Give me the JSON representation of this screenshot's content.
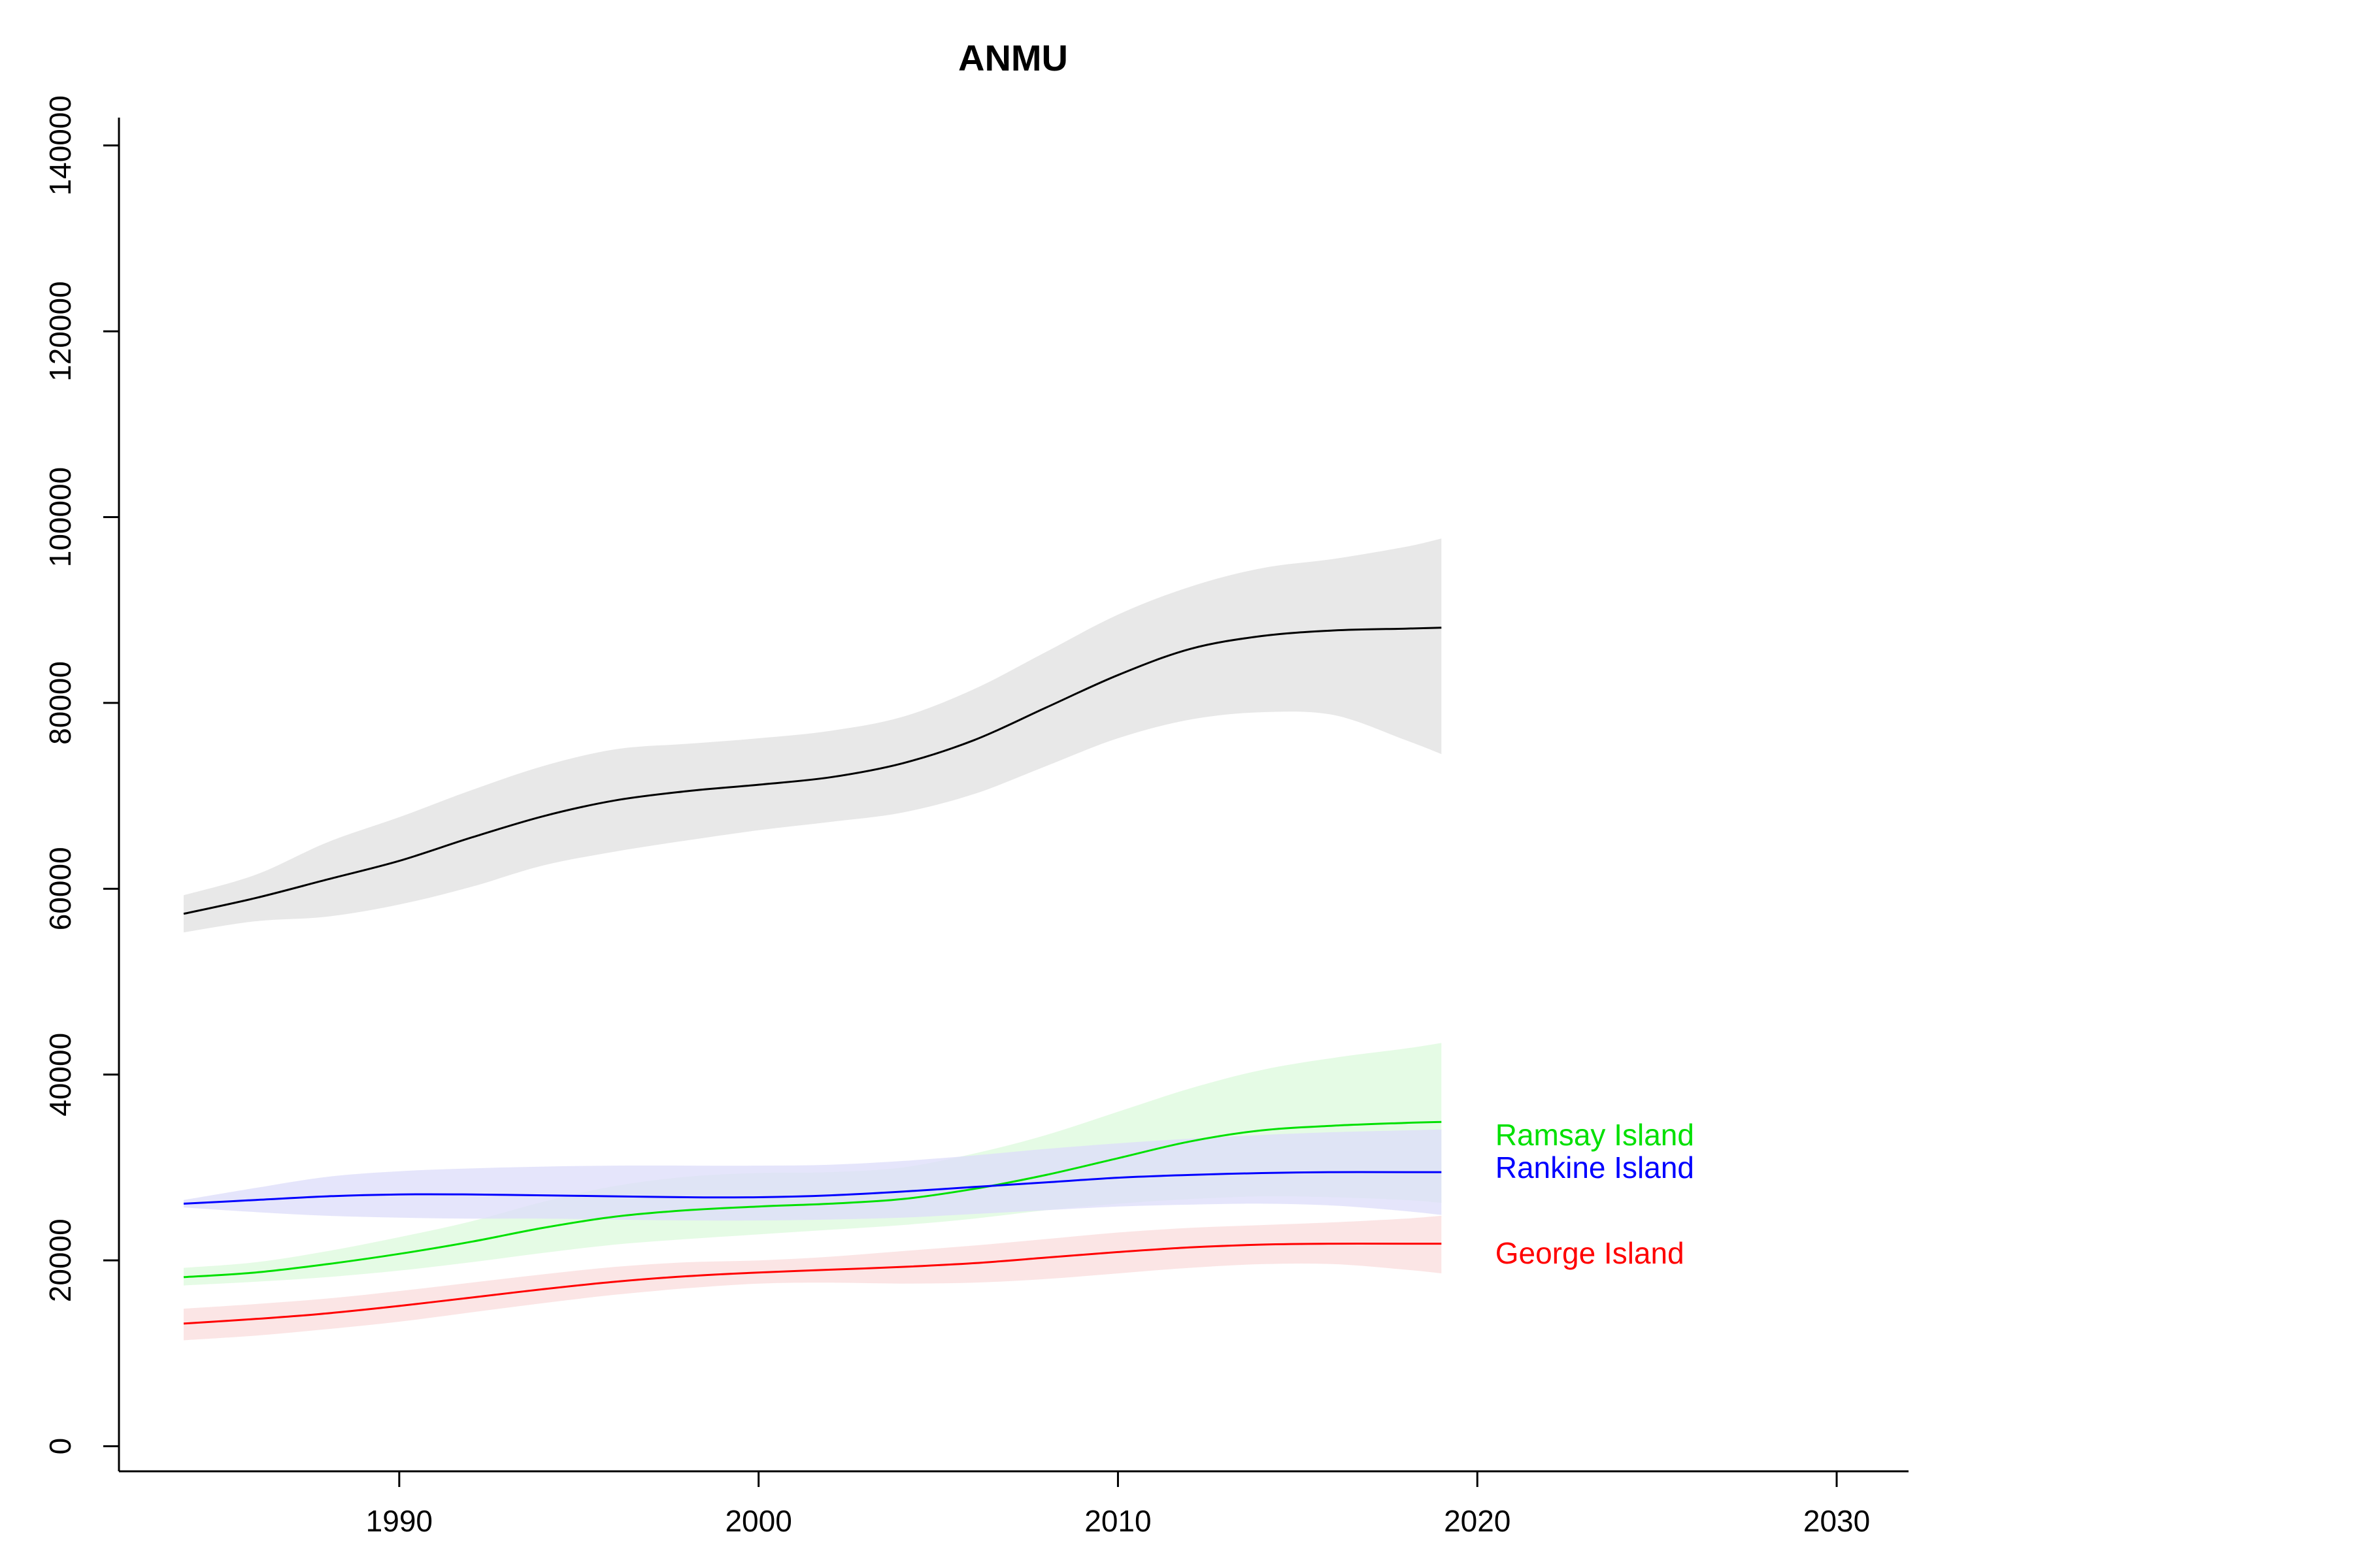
{
  "chart_data": {
    "type": "line",
    "title": "ANMU",
    "xlabel": "",
    "ylabel": "",
    "xlim": [
      1982.2,
      2032
    ],
    "ylim": [
      -2700,
      143000
    ],
    "x_ticks": [
      1990,
      2000,
      2010,
      2020,
      2030
    ],
    "y_ticks": [
      0,
      20000,
      40000,
      60000,
      80000,
      100000,
      120000,
      140000
    ],
    "grid": false,
    "legend": "none",
    "x": [
      1984,
      1986,
      1988,
      1990,
      1992,
      1994,
      1996,
      1998,
      2000,
      2002,
      2004,
      2006,
      2008,
      2010,
      2012,
      2014,
      2016,
      2018,
      2019
    ],
    "series": [
      {
        "name": "",
        "color": "#000000",
        "band_color": "#e0e0e0",
        "values": [
          57300,
          59000,
          61000,
          63000,
          65500,
          67800,
          69500,
          70500,
          71200,
          72000,
          73500,
          76000,
          79500,
          83000,
          85800,
          87200,
          87800,
          88000,
          88100
        ],
        "lower": [
          55300,
          56500,
          57000,
          58300,
          60200,
          62500,
          64000,
          65200,
          66300,
          67200,
          68200,
          70200,
          73200,
          76200,
          78200,
          79000,
          78700,
          76000,
          74500
        ],
        "upper": [
          59300,
          61500,
          65000,
          67700,
          70600,
          73200,
          75000,
          75600,
          76200,
          77000,
          78500,
          81500,
          85500,
          89500,
          92500,
          94500,
          95500,
          96800,
          97700
        ]
      },
      {
        "name": "Ramsay Island",
        "color": "#00e000",
        "band_color": "#dcfadc",
        "values": [
          18200,
          18700,
          19600,
          20700,
          22000,
          23500,
          24700,
          25400,
          25800,
          26100,
          26600,
          27700,
          29200,
          31000,
          32800,
          34000,
          34500,
          34800,
          34900
        ],
        "lower": [
          17300,
          17700,
          18200,
          18900,
          19800,
          20800,
          21700,
          22300,
          22800,
          23300,
          23800,
          24500,
          25400,
          26100,
          26600,
          26900,
          26800,
          26500,
          26200
        ],
        "upper": [
          19200,
          19800,
          21000,
          22500,
          24200,
          26300,
          28000,
          29000,
          29400,
          29500,
          30000,
          31500,
          33500,
          36000,
          38500,
          40500,
          41800,
          42800,
          43400
        ]
      },
      {
        "name": "Rankine Island",
        "color": "#0000ff",
        "band_color": "#dcdcfa",
        "values": [
          26100,
          26500,
          26900,
          27100,
          27100,
          27000,
          26900,
          26800,
          26800,
          27000,
          27400,
          27900,
          28400,
          28900,
          29200,
          29400,
          29500,
          29500,
          29500
        ],
        "lower": [
          25700,
          25200,
          24800,
          24600,
          24500,
          24500,
          24400,
          24300,
          24300,
          24400,
          24600,
          25000,
          25400,
          25800,
          26000,
          26100,
          25900,
          25300,
          24900
        ],
        "upper": [
          26500,
          27800,
          29000,
          29600,
          29900,
          30100,
          30200,
          30200,
          30200,
          30300,
          30700,
          31300,
          32000,
          32600,
          33100,
          33500,
          33800,
          34000,
          34100
        ]
      },
      {
        "name": "George Island",
        "color": "#ff0000",
        "band_color": "#fadcdc",
        "values": [
          13200,
          13700,
          14300,
          15100,
          16000,
          16900,
          17700,
          18300,
          18700,
          19000,
          19300,
          19700,
          20300,
          20900,
          21400,
          21700,
          21800,
          21800,
          21800
        ],
        "lower": [
          11400,
          11900,
          12600,
          13400,
          14400,
          15400,
          16300,
          17000,
          17500,
          17600,
          17500,
          17600,
          18000,
          18600,
          19200,
          19600,
          19600,
          19000,
          18600
        ],
        "upper": [
          14800,
          15300,
          15900,
          16700,
          17600,
          18500,
          19300,
          19800,
          20000,
          20400,
          21000,
          21600,
          22300,
          23000,
          23500,
          23800,
          24100,
          24500,
          24800
        ]
      }
    ],
    "label_positions": [
      {
        "text": "Ramsay Island",
        "x": 2020.5,
        "y": 33500,
        "color": "#00e000"
      },
      {
        "text": "Rankine Island",
        "x": 2020.5,
        "y": 30000,
        "color": "#0000ff"
      },
      {
        "text": "George Island",
        "x": 2020.5,
        "y": 20800,
        "color": "#ff0000"
      }
    ]
  }
}
